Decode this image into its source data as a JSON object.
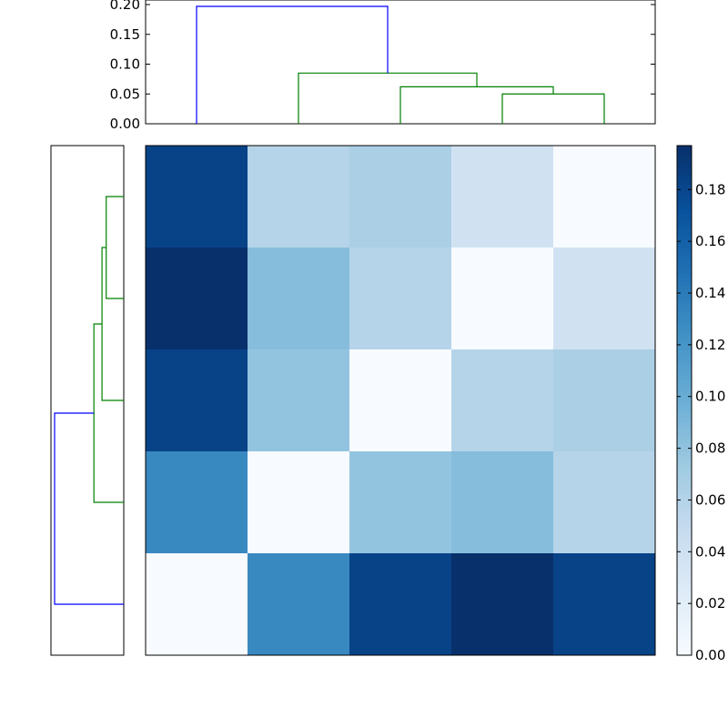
{
  "chart_data": [
    {
      "type": "dendrogram",
      "orientation": "top",
      "ylim": [
        0,
        0.2
      ],
      "yticks": [
        0.0,
        0.05,
        0.1,
        0.15,
        0.2
      ],
      "ytick_labels": [
        "0.00",
        "0.05",
        "0.10",
        "0.15",
        "0.20"
      ],
      "leaf_order": [
        0,
        1,
        2,
        3,
        4
      ],
      "merges": [
        {
          "left": 3,
          "right": 4,
          "height": 0.05,
          "color": "#008000"
        },
        {
          "left": 2,
          "right": "3+4",
          "height": 0.062,
          "color": "#008000"
        },
        {
          "left": 1,
          "right": "2+3+4",
          "height": 0.085,
          "color": "#008000"
        },
        {
          "left": 0,
          "right": "1+2+3+4",
          "height": 0.197,
          "color": "#0000ff"
        }
      ]
    },
    {
      "type": "dendrogram",
      "orientation": "left",
      "merges": [
        {
          "left": 0,
          "right": 1,
          "height": 0.05,
          "color": "#008000"
        },
        {
          "left": "0+1",
          "right": 2,
          "height": 0.062,
          "color": "#008000"
        },
        {
          "left": "0+1+2",
          "right": 3,
          "height": 0.085,
          "color": "#008000"
        },
        {
          "left": "0+1+2+3",
          "right": 4,
          "height": 0.197,
          "color": "#0000ff"
        }
      ]
    },
    {
      "type": "heatmap",
      "rows": 5,
      "cols": 5,
      "values": [
        [
          0.183,
          0.06,
          0.066,
          0.039,
          0.0
        ],
        [
          0.197,
          0.085,
          0.06,
          0.0,
          0.039
        ],
        [
          0.183,
          0.079,
          0.0,
          0.06,
          0.066
        ],
        [
          0.13,
          0.0,
          0.079,
          0.085,
          0.06
        ],
        [
          0.0,
          0.13,
          0.183,
          0.197,
          0.183
        ]
      ],
      "colormap": "Blues",
      "vmin": 0.0,
      "vmax": 0.197,
      "colorbar": {
        "ticks": [
          0.0,
          0.02,
          0.04,
          0.06,
          0.08,
          0.1,
          0.12,
          0.14,
          0.16,
          0.18
        ],
        "tick_labels": [
          "0.00",
          "0.02",
          "0.04",
          "0.06",
          "0.08",
          "0.10",
          "0.12",
          "0.14",
          "0.16",
          "0.18"
        ]
      }
    }
  ]
}
